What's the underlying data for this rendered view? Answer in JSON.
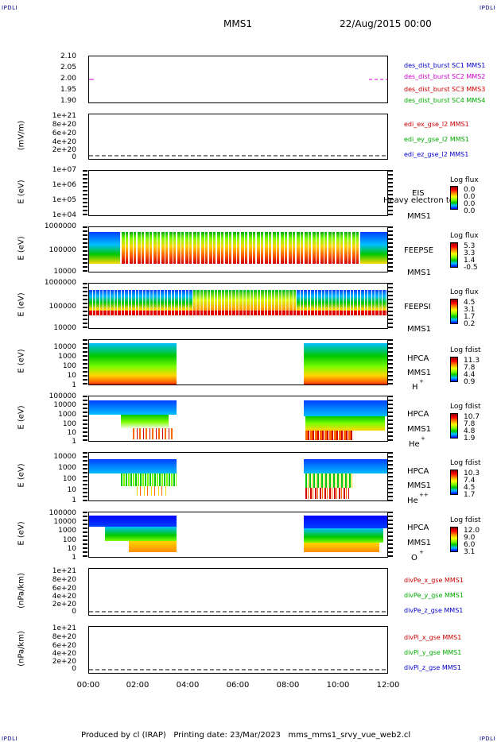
{
  "corners": {
    "tl": "IPDLI",
    "tr": "IPDLI",
    "bl": "IPDLI",
    "br": "IPDLI"
  },
  "header": {
    "title": "MMS1",
    "date": "22/Aug/2015 00:00"
  },
  "xaxis": {
    "ticks": [
      "00:00",
      "02:00",
      "04:00",
      "06:00",
      "08:00",
      "10:00",
      "12:00"
    ]
  },
  "panels": [
    {
      "id": "p1",
      "ylabel": "",
      "yticks": [
        "2.10",
        "2.05",
        "2.00",
        "1.95",
        "1.90"
      ],
      "legend": [
        {
          "text": "des_dist_burst SC1 MMS1",
          "color": "#0000cc"
        },
        {
          "text": "des_dist_burst SC2 MMS2",
          "color": "#cc00cc"
        },
        {
          "text": "des_dist_burst SC3 MMS3",
          "color": "#cc0000"
        },
        {
          "text": "des_dist_burst SC4 MMS4",
          "color": "#00aa00"
        }
      ]
    },
    {
      "id": "p2",
      "ylabel": "(mV/m)",
      "yticks": [
        "1e+21",
        "8e+20",
        "6e+20",
        "4e+20",
        "2e+20",
        "0"
      ],
      "legend": [
        {
          "text": "edi_ex_gse_l2 MMS1",
          "color": "#cc0000"
        },
        {
          "text": "edi_ey_gse_l2 MMS1",
          "color": "#00aa00"
        },
        {
          "text": "edi_ez_gse_l2 MMS1",
          "color": "#0000cc"
        }
      ]
    },
    {
      "id": "p3",
      "ylabel": "E (eV)",
      "yticks": [
        "1e+07",
        "1e+06",
        "1e+05",
        "1e+04"
      ],
      "labels": [
        "EIS",
        "Heavy electron to",
        "MMS1"
      ],
      "ctitle": "Log flux",
      "cvals": [
        "0.0",
        "0.0",
        "0.0",
        "0.0"
      ]
    },
    {
      "id": "p4",
      "ylabel": "E (eV)",
      "yticks": [
        "1000000",
        "100000",
        "10000"
      ],
      "labels": [
        "FEEPSE",
        "MMS1"
      ],
      "ctitle": "Log flux",
      "cvals": [
        "5.3",
        "3.3",
        "1.4",
        "-0.5"
      ]
    },
    {
      "id": "p5",
      "ylabel": "E (eV)",
      "yticks": [
        "1000000",
        "100000",
        "10000"
      ],
      "labels": [
        "FEEPSI",
        "MMS1"
      ],
      "ctitle": "Log flux",
      "cvals": [
        "4.5",
        "3.1",
        "1.7",
        "0.2"
      ]
    },
    {
      "id": "p6",
      "ylabel": "E (eV)",
      "yticks": [
        "10000",
        "1000",
        "100",
        "10",
        "1"
      ],
      "labels": [
        "HPCA",
        "MMS1",
        "H",
        "+"
      ],
      "ctitle": "Log fdist",
      "cvals": [
        "11.3",
        "7.8",
        "4.4",
        "0.9"
      ]
    },
    {
      "id": "p7",
      "ylabel": "E (eV)",
      "yticks": [
        "100000",
        "10000",
        "1000",
        "100",
        "10",
        "1"
      ],
      "labels": [
        "HPCA",
        "MMS1",
        "He",
        "+"
      ],
      "ctitle": "Log fdist",
      "cvals": [
        "10.7",
        "7.8",
        "4.8",
        "1.9"
      ]
    },
    {
      "id": "p8",
      "ylabel": "E (eV)",
      "yticks": [
        "10000",
        "1000",
        "100",
        "10",
        "1"
      ],
      "labels": [
        "HPCA",
        "MMS1",
        "He",
        "++"
      ],
      "ctitle": "Log fdist",
      "cvals": [
        "10.3",
        "7.4",
        "4.5",
        "1.7"
      ]
    },
    {
      "id": "p9",
      "ylabel": "E (eV)",
      "yticks": [
        "100000",
        "10000",
        "1000",
        "100",
        "10",
        "1"
      ],
      "labels": [
        "HPCA",
        "MMS1",
        "O",
        "+"
      ],
      "ctitle": "Log fdist",
      "cvals": [
        "12.0",
        "9.0",
        "6.0",
        "3.1"
      ]
    },
    {
      "id": "p10",
      "ylabel": "(nPa/km)",
      "yticks": [
        "1e+21",
        "8e+20",
        "6e+20",
        "4e+20",
        "2e+20",
        "0"
      ],
      "legend": [
        {
          "text": "divPe_x_gse MMS1",
          "color": "#cc0000"
        },
        {
          "text": "divPe_y_gse MMS1",
          "color": "#00aa00"
        },
        {
          "text": "divPe_z_gse MMS1",
          "color": "#0000cc"
        }
      ]
    },
    {
      "id": "p11",
      "ylabel": "(nPa/km)",
      "yticks": [
        "1e+21",
        "8e+20",
        "6e+20",
        "4e+20",
        "2e+20",
        "0"
      ],
      "legend": [
        {
          "text": "divPi_x_gse MMS1",
          "color": "#cc0000"
        },
        {
          "text": "divPi_y_gse MMS1",
          "color": "#00aa00"
        },
        {
          "text": "divPi_z_gse MMS1",
          "color": "#0000cc"
        }
      ]
    }
  ],
  "footer": "Produced by cl (IRAP)   Printing date: 23/Mar/2023   mms_mms1_srvy_vue_web2.cl"
}
